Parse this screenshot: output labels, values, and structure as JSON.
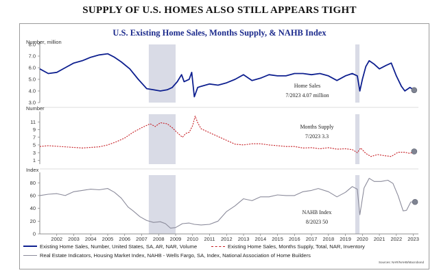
{
  "page_title": "SUPPLY OF U.S. HOMES ALSO STILL APPEARS TIGHT",
  "source": "Sources: NAR/NAHB/Macrobond",
  "colors": {
    "home_sales": "#0d1f8f",
    "months_supply": "#c4161c",
    "nahb": "#8a8a9a",
    "recession": "#d9dbe6",
    "marker": "#7f8492",
    "title": "#1b2a8c"
  },
  "chart_data": {
    "type": "line",
    "title": "U.S. Existing Home Sales, Months Supply, & NAHB Index",
    "x_ticks": [
      "2002",
      "2003",
      "2004",
      "2005",
      "2006",
      "2007",
      "2008",
      "2009",
      "2010",
      "2011",
      "2012",
      "2013",
      "2014",
      "2015",
      "2016",
      "2017",
      "2018",
      "2019",
      "2020",
      "2021",
      "2022",
      "2023"
    ],
    "xlim": [
      2001.5,
      2023.8
    ],
    "recessions": [
      [
        2007.92,
        2009.5
      ],
      [
        2020.08,
        2020.33
      ]
    ],
    "panels": [
      {
        "id": "home_sales",
        "ylabel": "Number, million",
        "ylim": [
          3.0,
          8.0
        ],
        "yticks": [
          "3.0",
          "4.0",
          "5.0",
          "6.0",
          "7.0",
          "8.0"
        ],
        "ytick_values": [
          3,
          4,
          5,
          6,
          7,
          8
        ],
        "style": "solid",
        "annotation": [
          "Home Sales",
          "7/2023 4.07 million"
        ],
        "end_marker": {
          "x": 2023.55,
          "y": 4.07
        },
        "series": {
          "name": "Existing Home Sales, Number, United States, SA, AR, NAR, Volume",
          "x": [
            2001.5,
            2002.0,
            2002.5,
            2003.0,
            2003.5,
            2004.0,
            2004.5,
            2005.0,
            2005.5,
            2005.9,
            2006.3,
            2006.8,
            2007.3,
            2007.8,
            2008.2,
            2008.6,
            2009.0,
            2009.3,
            2009.6,
            2009.85,
            2010.0,
            2010.3,
            2010.45,
            2010.6,
            2010.8,
            2011.0,
            2011.5,
            2012.0,
            2012.5,
            2013.0,
            2013.5,
            2014.0,
            2014.5,
            2015.0,
            2015.5,
            2016.0,
            2016.5,
            2017.0,
            2017.5,
            2018.0,
            2018.5,
            2019.0,
            2019.5,
            2019.9,
            2020.2,
            2020.35,
            2020.5,
            2020.7,
            2020.9,
            2021.2,
            2021.5,
            2021.9,
            2022.2,
            2022.5,
            2022.8,
            2023.0,
            2023.3,
            2023.55
          ],
          "values": [
            5.9,
            5.5,
            5.6,
            6.0,
            6.4,
            6.6,
            6.9,
            7.1,
            7.2,
            6.9,
            6.5,
            5.9,
            5.0,
            4.2,
            4.1,
            4.0,
            4.1,
            4.3,
            4.8,
            5.4,
            4.8,
            5.0,
            5.6,
            3.5,
            4.3,
            4.4,
            4.6,
            4.5,
            4.7,
            5.0,
            5.4,
            4.9,
            5.1,
            5.4,
            5.3,
            5.3,
            5.5,
            5.5,
            5.4,
            5.5,
            5.3,
            4.9,
            5.3,
            5.5,
            5.3,
            4.0,
            5.0,
            6.1,
            6.6,
            6.3,
            5.9,
            6.2,
            6.4,
            5.3,
            4.4,
            4.0,
            4.3,
            4.07
          ]
        }
      },
      {
        "id": "months_supply",
        "ylabel": "Number",
        "ylim": [
          0,
          13
        ],
        "yticks": [
          "1",
          "3",
          "5",
          "7",
          "9",
          "11"
        ],
        "ytick_values": [
          1,
          3,
          5,
          7,
          9,
          11
        ],
        "style": "dashed",
        "annotation": [
          "Months Supply",
          "7/2023 3.3"
        ],
        "end_marker": {
          "x": 2023.55,
          "y": 3.3
        },
        "series": {
          "name": "Existing Home Sales, Months Supply, Total, NAR, Inventory",
          "x": [
            2001.5,
            2002.0,
            2003.0,
            2004.0,
            2005.0,
            2005.5,
            2006.0,
            2006.5,
            2007.0,
            2007.5,
            2008.0,
            2008.3,
            2008.6,
            2009.0,
            2009.3,
            2009.6,
            2009.9,
            2010.1,
            2010.3,
            2010.5,
            2010.65,
            2010.8,
            2011.0,
            2011.5,
            2012.0,
            2012.5,
            2013.0,
            2013.5,
            2014.0,
            2014.5,
            2015.0,
            2015.5,
            2016.0,
            2016.5,
            2017.0,
            2017.5,
            2018.0,
            2018.5,
            2019.0,
            2019.5,
            2019.9,
            2020.2,
            2020.4,
            2020.7,
            2021.0,
            2021.4,
            2021.8,
            2022.2,
            2022.6,
            2023.0,
            2023.3,
            2023.55
          ],
          "values": [
            4.6,
            4.8,
            4.5,
            4.2,
            4.5,
            5.0,
            5.8,
            6.8,
            8.3,
            9.5,
            10.5,
            9.8,
            10.8,
            10.5,
            9.5,
            8.2,
            7.0,
            8.0,
            8.3,
            10.0,
            12.5,
            10.8,
            9.2,
            8.2,
            7.2,
            6.2,
            5.2,
            5.0,
            5.3,
            5.3,
            5.0,
            4.8,
            4.6,
            4.6,
            4.2,
            4.3,
            4.0,
            4.3,
            3.9,
            4.0,
            3.8,
            3.0,
            4.2,
            2.8,
            2.0,
            2.5,
            2.2,
            2.0,
            3.1,
            3.1,
            2.8,
            3.3
          ]
        }
      },
      {
        "id": "nahb",
        "ylabel": "Index",
        "ylim": [
          0,
          92
        ],
        "yticks": [
          "0",
          "20",
          "40",
          "60",
          "80"
        ],
        "ytick_values": [
          0,
          20,
          40,
          60,
          80
        ],
        "style": "solid",
        "annotation": [
          "NAHB Index",
          "8/2023 50"
        ],
        "end_marker": {
          "x": 2023.6,
          "y": 50
        },
        "series": {
          "name": "Real Estate Indicators, Housing Market Index, NAHB - Wells Fargo, SA, Index, National Association of Home Builders",
          "x": [
            2001.5,
            2002.0,
            2002.5,
            2003.0,
            2003.5,
            2004.0,
            2004.5,
            2005.0,
            2005.5,
            2005.9,
            2006.3,
            2006.7,
            2007.0,
            2007.4,
            2007.8,
            2008.2,
            2008.6,
            2008.9,
            2009.2,
            2009.5,
            2009.9,
            2010.3,
            2010.6,
            2011.0,
            2011.5,
            2012.0,
            2012.5,
            2013.0,
            2013.5,
            2014.0,
            2014.5,
            2015.0,
            2015.5,
            2016.0,
            2016.5,
            2017.0,
            2017.5,
            2017.9,
            2018.5,
            2019.0,
            2019.5,
            2019.9,
            2020.2,
            2020.35,
            2020.6,
            2020.9,
            2021.2,
            2021.6,
            2022.0,
            2022.3,
            2022.6,
            2022.9,
            2023.1,
            2023.35,
            2023.6
          ],
          "values": [
            60,
            62,
            63,
            60,
            66,
            68,
            70,
            69,
            71,
            65,
            56,
            42,
            36,
            27,
            21,
            18,
            19,
            16,
            9,
            10,
            16,
            17,
            15,
            14,
            15,
            20,
            35,
            44,
            55,
            52,
            58,
            58,
            61,
            60,
            60,
            66,
            68,
            71,
            66,
            58,
            65,
            74,
            70,
            30,
            72,
            87,
            82,
            82,
            84,
            79,
            60,
            36,
            37,
            50,
            50
          ]
        }
      }
    ],
    "legend": [
      {
        "series": "home_sales",
        "label": "Existing Home Sales, Number, United States, SA, AR, NAR, Volume"
      },
      {
        "series": "months_supply",
        "label": "Existing Home Sales, Months Supply, Total, NAR, Inventory"
      },
      {
        "series": "nahb",
        "label": "Real Estate Indicators, Housing Market Index, NAHB - Wells Fargo, SA, Index, National Association of Home Builders"
      }
    ]
  }
}
